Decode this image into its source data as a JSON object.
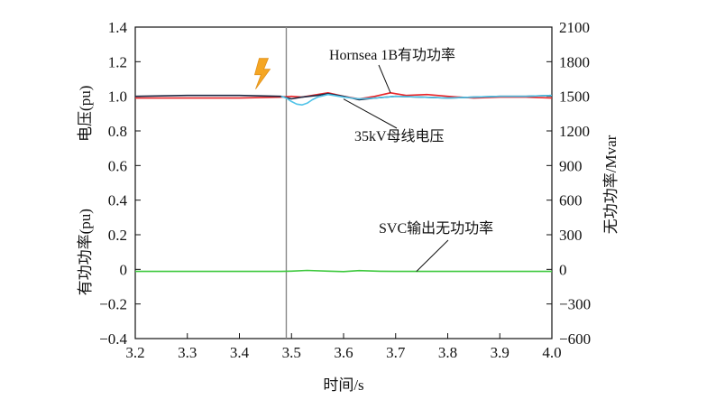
{
  "chart_data": {
    "type": "line",
    "xlabel": "时间/s",
    "ylabel_left_top": "电压(pu)",
    "ylabel_left_bottom": "有功功率(pu)",
    "ylabel_right": "无功功率/Mvar",
    "xlim": [
      3.2,
      4.0
    ],
    "ylim_left": [
      -0.4,
      1.4
    ],
    "ylim_right": [
      -600,
      2100
    ],
    "x_ticks": [
      "3.2",
      "3.3",
      "3.4",
      "3.5",
      "3.6",
      "3.7",
      "3.8",
      "3.9",
      "4.0"
    ],
    "y_left_ticks": [
      "1.4",
      "1.2",
      "1.0",
      "0.8",
      "0.6",
      "0.4",
      "0.2",
      "0",
      "−0.2",
      "−0.4"
    ],
    "y_right_ticks": [
      "2100",
      "1800",
      "1500",
      "1200",
      "900",
      "600",
      "300",
      "0",
      "−300",
      "−600"
    ],
    "fault_time": 3.49,
    "fault_icon": "lightning-bolt-icon",
    "grid": false,
    "annotations": {
      "hornsea": "Hornsea 1B有功功率",
      "bus": "35kV母线电压",
      "svc": "SVC输出无功功率"
    },
    "series": [
      {
        "key": "hornsea",
        "color": "#e8262a",
        "x": [
          3.2,
          3.3,
          3.4,
          3.48,
          3.5,
          3.52,
          3.55,
          3.57,
          3.6,
          3.63,
          3.66,
          3.69,
          3.72,
          3.76,
          3.8,
          3.85,
          3.9,
          3.95,
          4.0
        ],
        "y": [
          0.99,
          0.99,
          0.99,
          0.995,
          1.0,
          0.995,
          1.01,
          1.02,
          1.0,
          0.985,
          1.0,
          1.02,
          1.005,
          1.01,
          1.0,
          0.99,
          0.995,
          0.995,
          0.99
        ]
      },
      {
        "key": "bus",
        "color": "#1f2a44",
        "x": [
          3.2,
          3.3,
          3.4,
          3.48,
          3.5,
          3.52,
          3.55,
          3.57,
          3.6,
          3.63,
          3.66,
          3.7,
          3.75,
          3.8,
          3.85,
          3.9,
          3.95,
          4.0
        ],
        "y": [
          1.0,
          1.005,
          1.005,
          1.0,
          0.985,
          0.995,
          1.005,
          1.015,
          1.0,
          0.98,
          0.99,
          1.0,
          0.995,
          0.99,
          0.995,
          1.0,
          1.0,
          1.005
        ]
      },
      {
        "key": "bus-transient",
        "color": "#4fc3e8",
        "x": [
          3.48,
          3.49,
          3.5,
          3.51,
          3.52,
          3.53,
          3.54,
          3.55,
          3.57,
          3.6,
          3.63,
          3.66,
          3.7,
          3.75,
          3.8,
          3.85,
          3.9,
          3.95,
          4.0
        ],
        "y": [
          1.0,
          0.99,
          0.97,
          0.955,
          0.95,
          0.96,
          0.98,
          0.995,
          1.01,
          0.995,
          0.985,
          0.99,
          1.0,
          0.995,
          0.99,
          0.995,
          1.0,
          1.0,
          1.005
        ]
      },
      {
        "key": "svc",
        "color": "#3cc83c",
        "x": [
          3.2,
          3.3,
          3.4,
          3.48,
          3.5,
          3.53,
          3.57,
          3.6,
          3.63,
          3.67,
          3.7,
          3.8,
          3.9,
          4.0
        ],
        "y": [
          -0.012,
          -0.012,
          -0.012,
          -0.012,
          -0.01,
          -0.006,
          -0.01,
          -0.013,
          -0.007,
          -0.011,
          -0.012,
          -0.012,
          -0.012,
          -0.012
        ]
      }
    ]
  }
}
